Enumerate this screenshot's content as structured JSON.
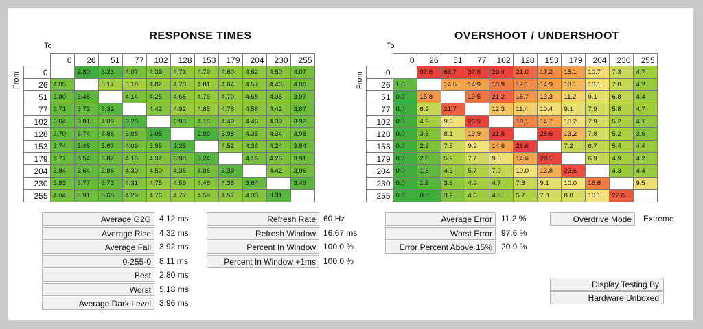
{
  "response": {
    "title": "RESPONSE TIMES",
    "to_label": "To",
    "from_label": "From"
  },
  "overshoot": {
    "title": "OVERSHOOT / UNDERSHOOT",
    "to_label": "To",
    "from_label": "From"
  },
  "chart_data": [
    {
      "type": "heatmap",
      "title": "RESPONSE TIMES",
      "xlabel": "To",
      "ylabel": "From",
      "x": [
        "0",
        "26",
        "51",
        "77",
        "102",
        "128",
        "153",
        "179",
        "204",
        "230",
        "255"
      ],
      "y": [
        "0",
        "26",
        "51",
        "77",
        "102",
        "128",
        "153",
        "179",
        "204",
        "230",
        "255"
      ],
      "values": [
        [
          "",
          "2.80",
          "3.23",
          "4.07",
          "4.39",
          "4.73",
          "4.79",
          "4.60",
          "4.62",
          "4.50",
          "4.07"
        ],
        [
          "4.05",
          "",
          "5.17",
          "5.18",
          "4.82",
          "4.78",
          "4.81",
          "4.64",
          "4.57",
          "4.43",
          "4.06"
        ],
        [
          "3.80",
          "3.46",
          "",
          "4.14",
          "4.25",
          "4.65",
          "4.76",
          "4.70",
          "4.58",
          "4.35",
          "3.97"
        ],
        [
          "3.71",
          "3.72",
          "3.32",
          "",
          "4.42",
          "4.92",
          "4.85",
          "4.78",
          "4.58",
          "4.42",
          "3.87"
        ],
        [
          "3.64",
          "3.81",
          "4.09",
          "3.23",
          "",
          "3.93",
          "4.16",
          "4.49",
          "4.46",
          "4.39",
          "3.92"
        ],
        [
          "3.70",
          "3.74",
          "3.86",
          "3.98",
          "3.05",
          "",
          "2.99",
          "3.98",
          "4.35",
          "4.34",
          "3.98"
        ],
        [
          "3.74",
          "3.46",
          "3.67",
          "4.09",
          "3.95",
          "3.25",
          "",
          "4.52",
          "4.38",
          "4.24",
          "3.84"
        ],
        [
          "3.77",
          "3.54",
          "3.82",
          "4.16",
          "4.32",
          "3.98",
          "3.24",
          "",
          "4.16",
          "4.25",
          "3.91"
        ],
        [
          "3.84",
          "3.64",
          "3.86",
          "4.30",
          "4.50",
          "4.35",
          "4.06",
          "3.39",
          "",
          "4.42",
          "3.96"
        ],
        [
          "3.93",
          "3.77",
          "3.73",
          "4.31",
          "4.75",
          "4.59",
          "4.46",
          "4.38",
          "3.64",
          "",
          "3.49"
        ],
        [
          "4.04",
          "3.91",
          "3.65",
          "4.29",
          "4.76",
          "4.77",
          "4.59",
          "4.57",
          "4.33",
          "3.31",
          ""
        ]
      ]
    },
    {
      "type": "heatmap",
      "title": "OVERSHOOT / UNDERSHOOT",
      "xlabel": "To",
      "ylabel": "From",
      "x": [
        "0",
        "26",
        "51",
        "77",
        "102",
        "128",
        "153",
        "179",
        "204",
        "230",
        "255"
      ],
      "y": [
        "0",
        "26",
        "51",
        "77",
        "102",
        "128",
        "153",
        "179",
        "204",
        "230",
        "255"
      ],
      "values": [
        [
          "",
          "97.6",
          "66.7",
          "37.8",
          "29.4",
          "21.0",
          "17.2",
          "15.1",
          "10.7",
          "7.3",
          "4.7"
        ],
        [
          "1.6",
          "",
          "14.5",
          "14.9",
          "18.9",
          "17.1",
          "14.9",
          "13.1",
          "10.1",
          "7.0",
          "4.2"
        ],
        [
          "0.0",
          "15.8",
          "",
          "19.5",
          "21.2",
          "15.7",
          "13.3",
          "11.2",
          "9.1",
          "6.8",
          "4.4"
        ],
        [
          "0.0",
          "6.9",
          "21.7",
          "",
          "12.3",
          "11.4",
          "10.4",
          "9.1",
          "7.9",
          "5.8",
          "4.7"
        ],
        [
          "0.0",
          "4.9",
          "9.8",
          "26.9",
          "",
          "18.1",
          "14.7",
          "10.2",
          "7.9",
          "5.2",
          "4.1"
        ],
        [
          "0.0",
          "3.3",
          "8.1",
          "13.9",
          "31.8",
          "",
          "28.6",
          "13.2",
          "7.8",
          "5.2",
          "3.6"
        ],
        [
          "0.0",
          "2.9",
          "7.5",
          "9.9",
          "14.8",
          "28.6",
          "",
          "7.2",
          "6.7",
          "5.4",
          "4.4"
        ],
        [
          "0.0",
          "2.0",
          "5.2",
          "7.7",
          "9.5",
          "14.6",
          "28.1",
          "",
          "6.9",
          "4.9",
          "4.2"
        ],
        [
          "0.0",
          "1.5",
          "4.3",
          "5.7",
          "7.0",
          "10.0",
          "13.8",
          "23.6",
          "",
          "4.3",
          "4.4"
        ],
        [
          "0.0",
          "1.2",
          "3.8",
          "4.9",
          "4.7",
          "7.3",
          "9.1",
          "10.0",
          "18.8",
          "",
          "9.5"
        ],
        [
          "0.0",
          "0.0",
          "3.2",
          "4.6",
          "4.3",
          "5.7",
          "7.8",
          "8.0",
          "10.1",
          "22.6",
          ""
        ]
      ]
    }
  ],
  "stats_left": [
    {
      "label": "Average G2G",
      "value": "4.12 ms"
    },
    {
      "label": "Average Rise",
      "value": "4.32 ms"
    },
    {
      "label": "Average Fall",
      "value": "3.92 ms"
    },
    {
      "label": "0-255-0",
      "value": "8.11 ms"
    },
    {
      "label": "Best",
      "value": "2.80 ms"
    },
    {
      "label": "Worst",
      "value": "5.18 ms"
    },
    {
      "label": "Average Dark Level",
      "value": "3.96 ms"
    }
  ],
  "stats_mid": [
    {
      "label": "Refresh Rate",
      "value": "60 Hz"
    },
    {
      "label": "Refresh Window",
      "value": "16.67 ms"
    },
    {
      "label": "Percent In Window",
      "value": "100.0 %"
    },
    {
      "label": "Percent In Window +1ms",
      "value": "100.0 %"
    }
  ],
  "stats_right": [
    {
      "label": "Average Error",
      "value": "11.2 %"
    },
    {
      "label": "Worst Error",
      "value": "97.6 %"
    },
    {
      "label": "Error Percent Above 15%",
      "value": "20.9 %"
    }
  ],
  "overdrive": {
    "label": "Overdrive Mode",
    "value": "Extreme"
  },
  "credit": {
    "line1": "Display Testing By",
    "line2": "Hardware Unboxed"
  },
  "colors": {
    "green_dark": "#3fae3c",
    "green_light": "#a6cf3c",
    "yellow": "#f4e27a",
    "orange": "#f4a04a",
    "red": "#e8413a",
    "panel_bg": "#ffffff",
    "page_bg": "#c9c9c9"
  }
}
